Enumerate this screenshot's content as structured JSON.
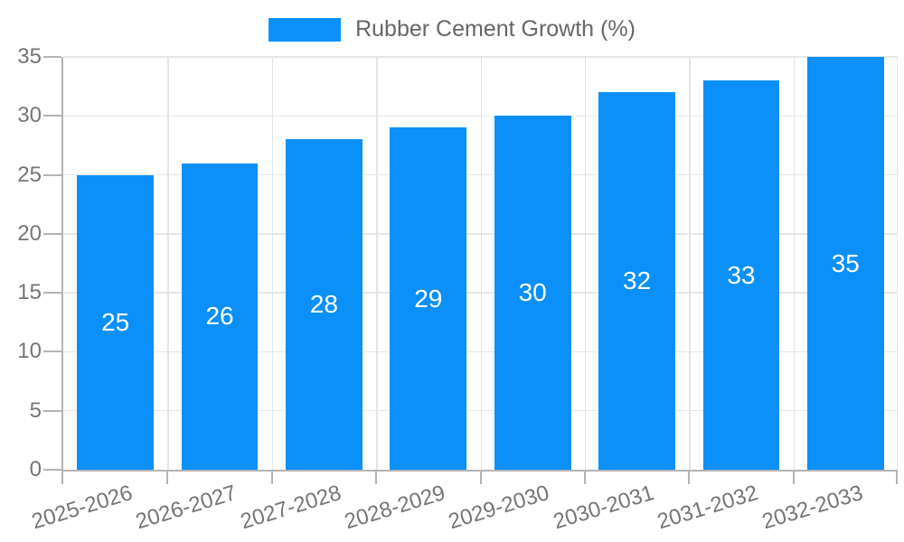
{
  "legend": {
    "label": "Rubber Cement Growth (%)"
  },
  "colors": {
    "bar": "#0A90F8",
    "bar_label": "#ffffff",
    "axis_text": "#757575",
    "legend_text": "#666666",
    "grid_line": "#e6e6e6",
    "axis_line": "#b4b4b4",
    "background": "#ffffff"
  },
  "chart_data": {
    "type": "bar",
    "title": "Rubber Cement Growth (%)",
    "categories": [
      "2025-2026",
      "2026-2027",
      "2027-2028",
      "2028-2029",
      "2029-2030",
      "2030-2031",
      "2031-2032",
      "2032-2033"
    ],
    "series": [
      {
        "name": "Rubber Cement Growth (%)",
        "values": [
          25,
          26,
          28,
          29,
          30,
          32,
          33,
          35
        ]
      }
    ],
    "xlabel": "",
    "ylabel": "",
    "ylim": [
      0,
      35
    ],
    "yticks": [
      0,
      5,
      10,
      15,
      20,
      25,
      30,
      35
    ],
    "grid": true,
    "legend_position": "top",
    "value_labels": "inside-center",
    "x_label_rotation_deg": -17
  }
}
